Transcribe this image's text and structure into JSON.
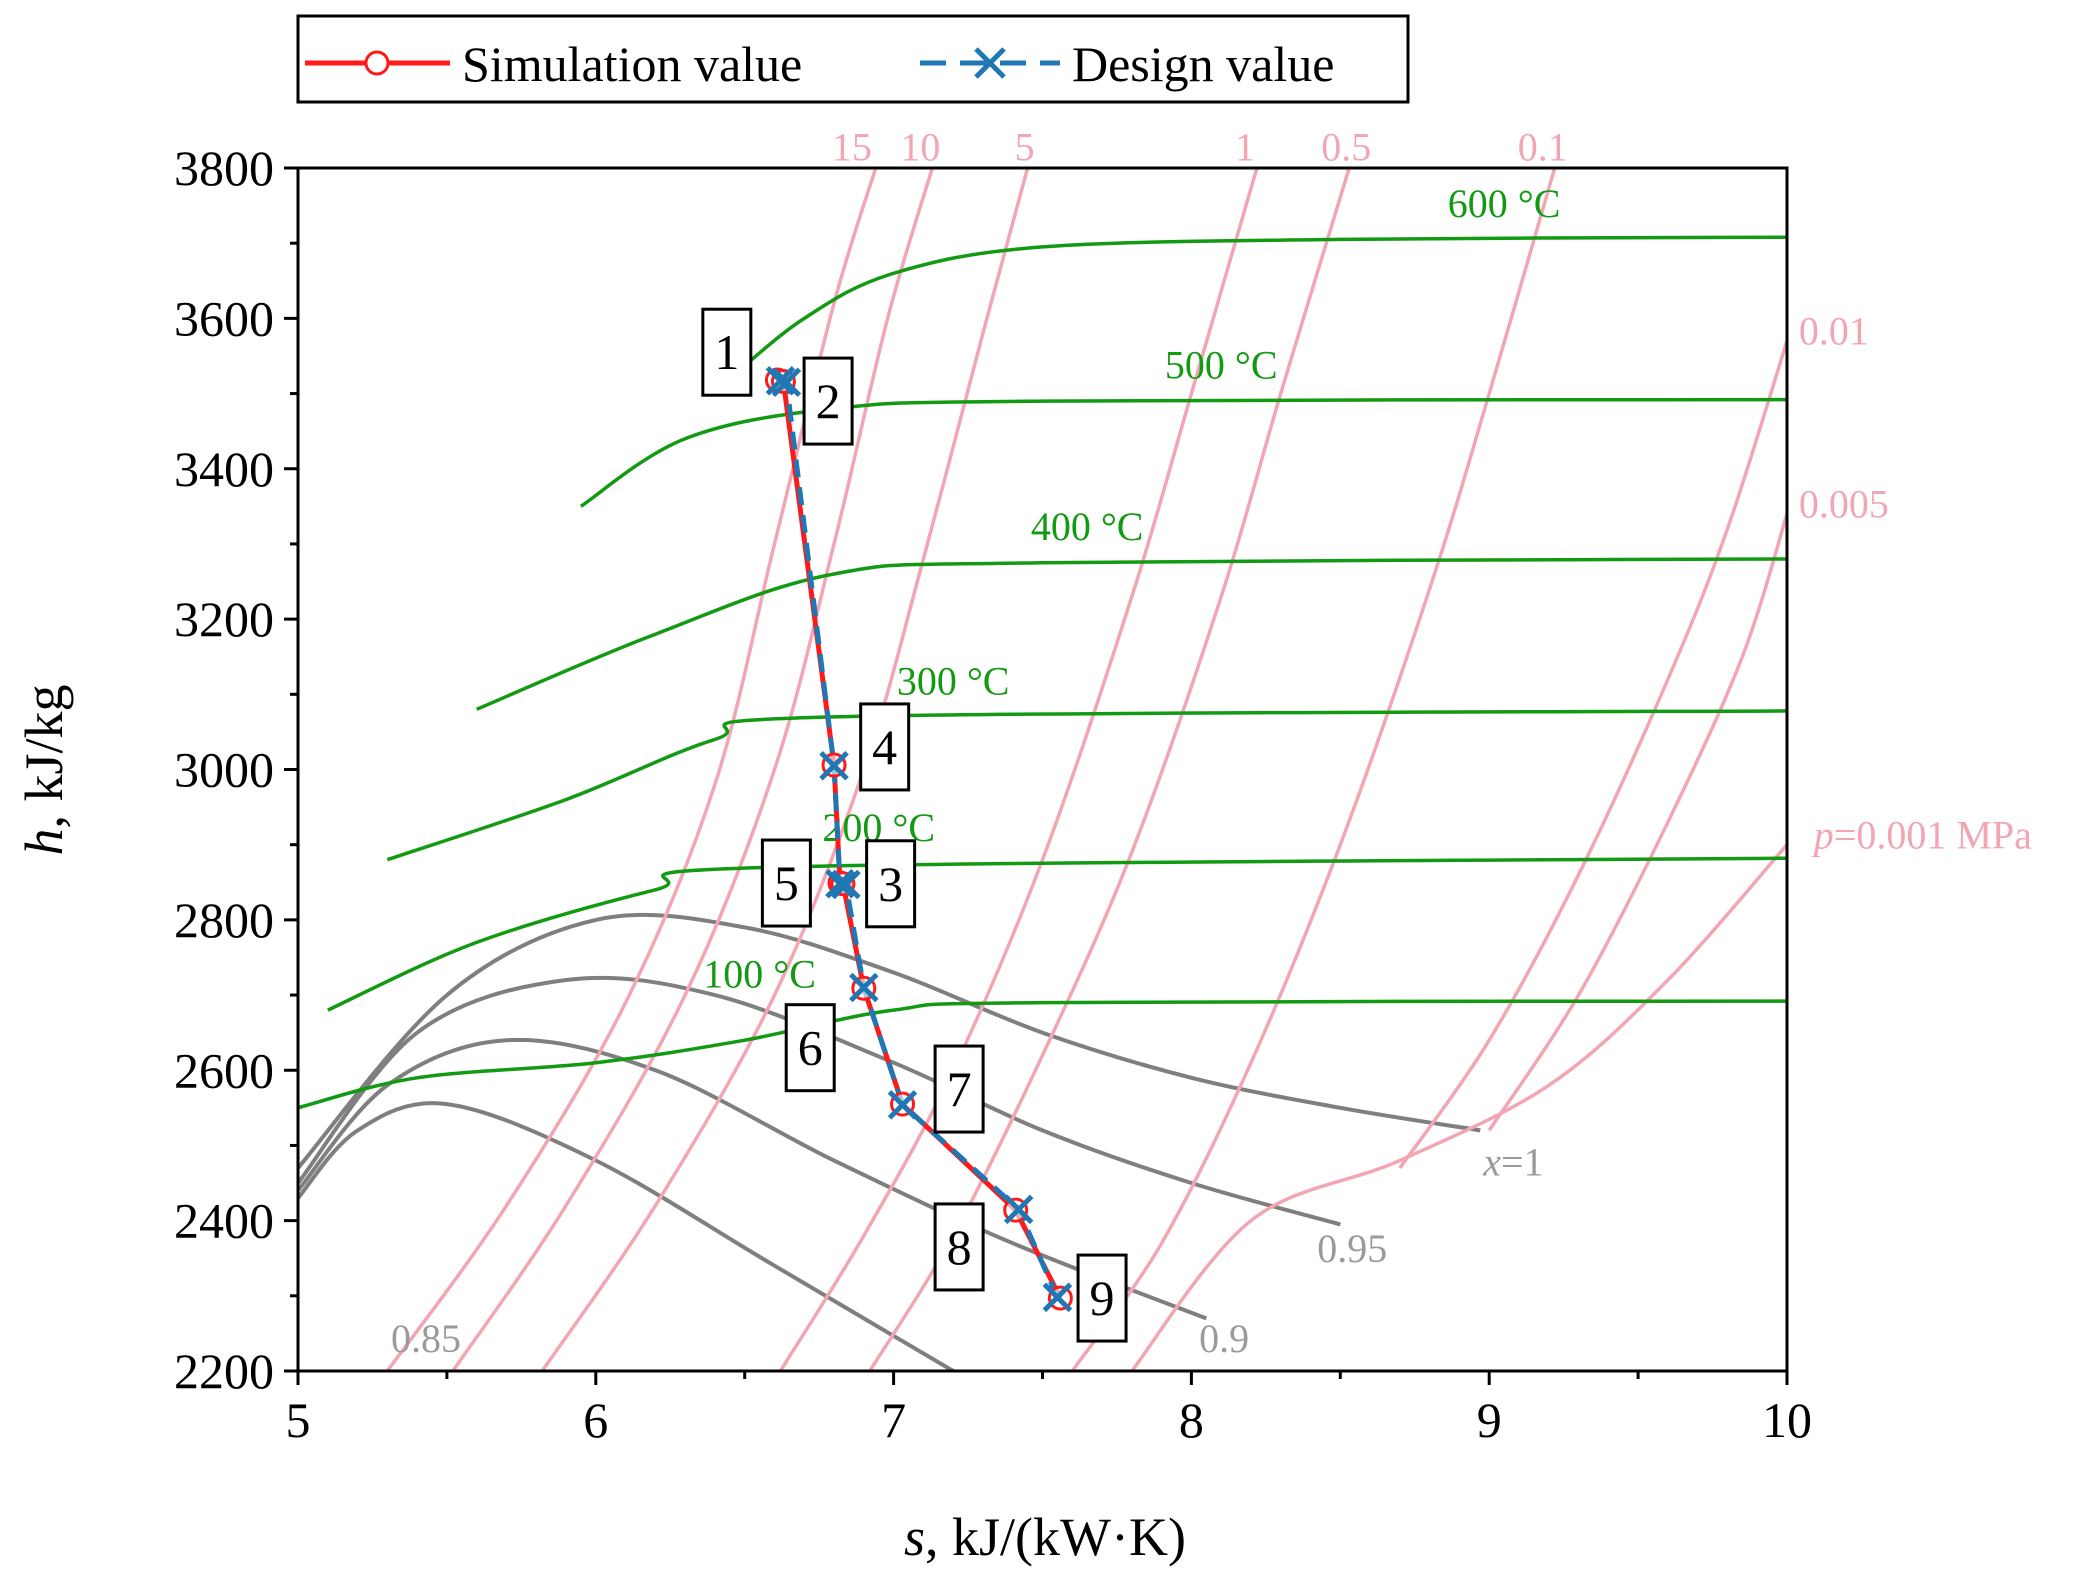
{
  "chart_data": {
    "type": "line",
    "title": "",
    "xlabel_symbol": "s",
    "xlabel_unit": ", kJ/(kW·K)",
    "ylabel_symbol": "h",
    "ylabel_unit": ", kJ/kg",
    "xlim": [
      5,
      10
    ],
    "ylim": [
      2200,
      3800
    ],
    "x_ticks": [
      "5",
      "6",
      "7",
      "8",
      "9",
      "10"
    ],
    "y_ticks": [
      "2200",
      "2400",
      "2600",
      "2800",
      "3000",
      "3200",
      "3400",
      "3600",
      "3800"
    ],
    "legend": {
      "placement": "top",
      "entries": [
        {
          "label": "Simulation value",
          "color": "#ff1a1a",
          "marker": "open-circle"
        },
        {
          "label": "Design value",
          "color": "#1f77b4",
          "marker": "x"
        }
      ]
    },
    "series": [
      {
        "name": "Simulation value",
        "color": "#ff1a1a",
        "points": [
          {
            "label": "1",
            "s": 6.61,
            "h": 3518
          },
          {
            "label": "2",
            "s": 6.63,
            "h": 3516
          },
          {
            "label": "4",
            "s": 6.8,
            "h": 3006
          },
          {
            "label": "3",
            "s": 6.82,
            "h": 2849
          },
          {
            "label": "5",
            "s": 6.83,
            "h": 2848
          },
          {
            "label": "6",
            "s": 6.9,
            "h": 2709
          },
          {
            "label": "7",
            "s": 7.03,
            "h": 2555
          },
          {
            "label": "8",
            "s": 7.41,
            "h": 2414
          },
          {
            "label": "9",
            "s": 7.56,
            "h": 2297
          }
        ]
      },
      {
        "name": "Design value",
        "color": "#1f77b4",
        "points": [
          {
            "label": "1",
            "s": 6.62,
            "h": 3517
          },
          {
            "label": "2",
            "s": 6.64,
            "h": 3515
          },
          {
            "label": "4",
            "s": 6.8,
            "h": 3005
          },
          {
            "label": "3",
            "s": 6.82,
            "h": 2848
          },
          {
            "label": "5",
            "s": 6.84,
            "h": 2847
          },
          {
            "label": "6",
            "s": 6.9,
            "h": 2710
          },
          {
            "label": "7",
            "s": 7.03,
            "h": 2554
          },
          {
            "label": "8",
            "s": 7.42,
            "h": 2415
          },
          {
            "label": "9",
            "s": 7.55,
            "h": 2298
          }
        ]
      }
    ],
    "state_point_labels": [
      {
        "text": "1",
        "s": 6.44,
        "h": 3555
      },
      {
        "text": "2",
        "s": 6.78,
        "h": 3490
      },
      {
        "text": "4",
        "s": 6.97,
        "h": 3030
      },
      {
        "text": "5",
        "s": 6.64,
        "h": 2849
      },
      {
        "text": "3",
        "s": 6.99,
        "h": 2848
      },
      {
        "text": "6",
        "s": 6.72,
        "h": 2630
      },
      {
        "text": "7",
        "s": 7.22,
        "h": 2575
      },
      {
        "text": "8",
        "s": 7.22,
        "h": 2365
      },
      {
        "text": "9",
        "s": 7.7,
        "h": 2297
      }
    ],
    "isobars": {
      "color": "#f2a6b4",
      "curves": [
        {
          "label": "15",
          "points": [
            [
              5.3,
              2200
            ],
            [
              5.7,
              2420
            ],
            [
              6.1,
              2690
            ],
            [
              6.4,
              2980
            ],
            [
              6.6,
              3300
            ],
            [
              6.8,
              3620
            ],
            [
              6.94,
              3800
            ]
          ]
        },
        {
          "label": "10",
          "points": [
            [
              5.52,
              2200
            ],
            [
              5.9,
              2420
            ],
            [
              6.3,
              2700
            ],
            [
              6.6,
              3000
            ],
            [
              6.8,
              3300
            ],
            [
              6.98,
              3600
            ],
            [
              7.13,
              3800
            ]
          ]
        },
        {
          "label": "5",
          "points": [
            [
              5.82,
              2200
            ],
            [
              6.2,
              2420
            ],
            [
              6.6,
              2700
            ],
            [
              6.9,
              3000
            ],
            [
              7.1,
              3280
            ],
            [
              7.3,
              3580
            ],
            [
              7.45,
              3800
            ]
          ]
        },
        {
          "label": "1",
          "points": [
            [
              6.62,
              2200
            ],
            [
              6.9,
              2380
            ],
            [
              7.2,
              2600
            ],
            [
              7.5,
              2880
            ],
            [
              7.8,
              3230
            ],
            [
              8.0,
              3500
            ],
            [
              8.22,
              3800
            ]
          ]
        },
        {
          "label": "0.5",
          "points": [
            [
              6.92,
              2200
            ],
            [
              7.2,
              2380
            ],
            [
              7.5,
              2620
            ],
            [
              7.8,
              2890
            ],
            [
              8.1,
              3230
            ],
            [
              8.3,
              3500
            ],
            [
              8.53,
              3800
            ]
          ]
        },
        {
          "label": "0.1",
          "points": [
            [
              7.6,
              2200
            ],
            [
              7.9,
              2370
            ],
            [
              8.2,
              2610
            ],
            [
              8.5,
              2900
            ],
            [
              8.8,
              3240
            ],
            [
              9.0,
              3500
            ],
            [
              9.22,
              3800
            ]
          ]
        },
        {
          "label": "0.01",
          "points": [
            [
              8.7,
              2470
            ],
            [
              9.0,
              2640
            ],
            [
              9.3,
              2860
            ],
            [
              9.6,
              3120
            ],
            [
              9.8,
              3320
            ],
            [
              10.0,
              3570
            ]
          ]
        },
        {
          "label": "0.005",
          "points": [
            [
              9.0,
              2520
            ],
            [
              9.3,
              2700
            ],
            [
              9.6,
              2930
            ],
            [
              9.85,
              3150
            ],
            [
              10.0,
              3340
            ]
          ]
        },
        {
          "label": "p=0.001 MPa",
          "points": [
            [
              7.8,
              2200
            ],
            [
              8.2,
              2400
            ],
            [
              8.7,
              2480
            ],
            [
              9.2,
              2580
            ],
            [
              9.6,
              2720
            ],
            [
              10.0,
              2900
            ]
          ]
        }
      ],
      "labels": [
        {
          "text": "15",
          "s": 6.86,
          "h": 3810
        },
        {
          "text": "10",
          "s": 7.09,
          "h": 3810
        },
        {
          "text": "5",
          "s": 7.44,
          "h": 3810
        },
        {
          "text": "1",
          "s": 8.18,
          "h": 3810
        },
        {
          "text": "0.5",
          "s": 8.52,
          "h": 3810
        },
        {
          "text": "0.1",
          "s": 9.18,
          "h": 3810
        },
        {
          "text": "0.01",
          "s": 10.04,
          "h": 3565
        },
        {
          "text": "0.005",
          "s": 10.04,
          "h": 3335
        },
        {
          "text": "=0.001 MPa",
          "s": 10.09,
          "h": 2895
        }
      ],
      "label_prefix_symbol": "p"
    },
    "isotherms": {
      "color": "#129a12",
      "curves": [
        {
          "label": "600 °C",
          "points": [
            [
              6.45,
              3520
            ],
            [
              6.7,
              3600
            ],
            [
              7.0,
              3660
            ],
            [
              7.5,
              3695
            ],
            [
              8.5,
              3705
            ],
            [
              10.0,
              3708
            ]
          ]
        },
        {
          "label": "500 °C",
          "points": [
            [
              5.95,
              3350
            ],
            [
              6.3,
              3440
            ],
            [
              6.8,
              3480
            ],
            [
              7.5,
              3490
            ],
            [
              10.0,
              3492
            ]
          ]
        },
        {
          "label": "400 °C",
          "points": [
            [
              5.6,
              3080
            ],
            [
              6.2,
              3180
            ],
            [
              6.8,
              3260
            ],
            [
              7.5,
              3275
            ],
            [
              10.0,
              3280
            ]
          ]
        },
        {
          "label": "300 °C",
          "points": [
            [
              5.3,
              2880
            ],
            [
              5.9,
              2960
            ],
            [
              6.4,
              3040
            ],
            [
              6.8,
              3070
            ],
            [
              10.0,
              3078
            ]
          ]
        },
        {
          "label": "200 °C",
          "points": [
            [
              5.1,
              2680
            ],
            [
              5.6,
              2770
            ],
            [
              6.2,
              2840
            ],
            [
              6.6,
              2870
            ],
            [
              10.0,
              2882
            ]
          ]
        },
        {
          "label": "100 °C",
          "points": [
            [
              5.0,
              2550
            ],
            [
              5.4,
              2590
            ],
            [
              6.0,
              2610
            ],
            [
              6.5,
              2640
            ],
            [
              7.0,
              2680
            ],
            [
              7.5,
              2690
            ],
            [
              10.0,
              2692
            ]
          ]
        }
      ],
      "labels": [
        {
          "text": "600 °C",
          "s": 9.05,
          "h": 3735
        },
        {
          "text": "500 °C",
          "s": 8.1,
          "h": 3520
        },
        {
          "text": "400 °C",
          "s": 7.65,
          "h": 3305
        },
        {
          "text": "300 °C",
          "s": 7.2,
          "h": 3100
        },
        {
          "text": "200 °C",
          "s": 6.95,
          "h": 2905
        },
        {
          "text": "100 °C",
          "s": 6.55,
          "h": 2710
        }
      ]
    },
    "quality_lines": {
      "color": "#7f7f7f",
      "curves": [
        {
          "label": "x=1",
          "points": [
            [
              5.0,
              2470
            ],
            [
              5.5,
              2700
            ],
            [
              6.0,
              2800
            ],
            [
              6.5,
              2790
            ],
            [
              7.0,
              2730
            ],
            [
              7.5,
              2650
            ],
            [
              8.0,
              2590
            ],
            [
              8.5,
              2550
            ],
            [
              8.97,
              2520
            ]
          ]
        },
        {
          "label": "0.95",
          "points": [
            [
              5.0,
              2450
            ],
            [
              5.4,
              2650
            ],
            [
              5.9,
              2720
            ],
            [
              6.4,
              2700
            ],
            [
              7.0,
              2610
            ],
            [
              7.5,
              2520
            ],
            [
              8.0,
              2450
            ],
            [
              8.5,
              2395
            ]
          ]
        },
        {
          "label": "0.9",
          "points": [
            [
              5.0,
              2440
            ],
            [
              5.3,
              2580
            ],
            [
              5.7,
              2640
            ],
            [
              6.2,
              2600
            ],
            [
              6.8,
              2480
            ],
            [
              7.4,
              2370
            ],
            [
              8.05,
              2270
            ]
          ]
        },
        {
          "label": "0.85",
          "points": [
            [
              5.0,
              2430
            ],
            [
              5.2,
              2520
            ],
            [
              5.5,
              2555
            ],
            [
              6.0,
              2480
            ],
            [
              6.6,
              2340
            ],
            [
              7.2,
              2200
            ]
          ]
        }
      ],
      "labels": [
        {
          "text": "=1",
          "s": 8.98,
          "h": 2460
        },
        {
          "text": "0.95",
          "s": 8.54,
          "h": 2345
        },
        {
          "text": "0.9",
          "s": 8.11,
          "h": 2225
        },
        {
          "text": "0.85",
          "s": 5.43,
          "h": 2225
        }
      ],
      "label_prefix_symbol": "x"
    }
  }
}
